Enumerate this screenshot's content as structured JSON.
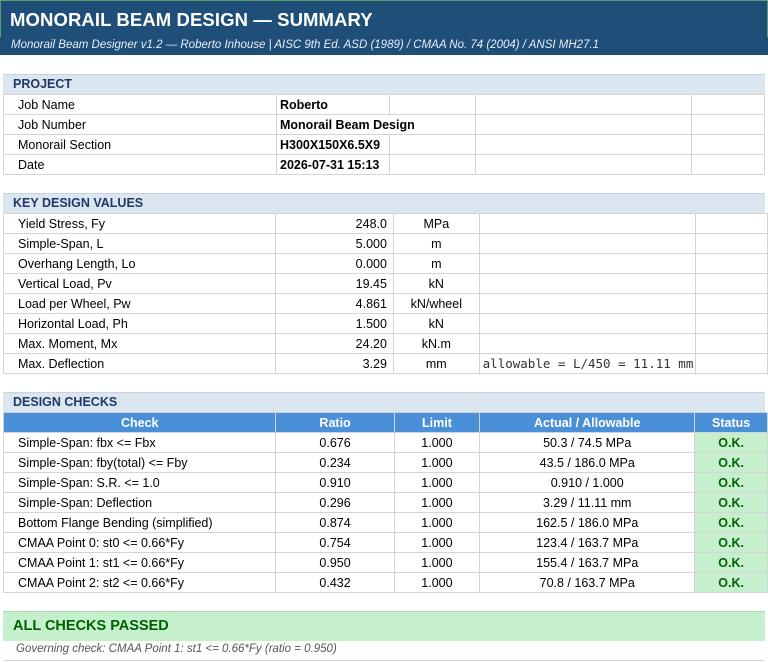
{
  "title": "MONORAIL BEAM DESIGN — SUMMARY",
  "subtitle": "Monorail Beam Designer v1.2 — Roberto Inhouse   |   AISC 9th Ed. ASD (1989) / CMAA No. 74 (2004) / ANSI MH27.1",
  "project": {
    "header": "PROJECT",
    "rows": [
      {
        "label": "Job Name",
        "value": "Roberto"
      },
      {
        "label": "Job Number",
        "value": "Monorail Beam Design"
      },
      {
        "label": "Monorail Section",
        "value": "H300X150X6.5X9"
      },
      {
        "label": "Date",
        "value": "2026-07-31 15:13"
      }
    ]
  },
  "key_values": {
    "header": "KEY DESIGN VALUES",
    "rows": [
      {
        "label": "Yield Stress, Fy",
        "value": "248.0",
        "unit": "MPa",
        "note": ""
      },
      {
        "label": "Simple-Span, L",
        "value": "5.000",
        "unit": "m",
        "note": ""
      },
      {
        "label": "Overhang Length, Lo",
        "value": "0.000",
        "unit": "m",
        "note": ""
      },
      {
        "label": "Vertical Load, Pv",
        "value": "19.45",
        "unit": "kN",
        "note": ""
      },
      {
        "label": "Load per Wheel, Pw",
        "value": "4.861",
        "unit": "kN/wheel",
        "note": ""
      },
      {
        "label": "Horizontal Load, Ph",
        "value": "1.500",
        "unit": "kN",
        "note": ""
      },
      {
        "label": "Max. Moment, Mx",
        "value": "24.20",
        "unit": "kN.m",
        "note": ""
      },
      {
        "label": "Max. Deflection",
        "value": "3.29",
        "unit": "mm",
        "note": "allowable = L/450 = 11.11 mm"
      }
    ]
  },
  "checks": {
    "header": "DESIGN CHECKS",
    "columns": [
      "Check",
      "Ratio",
      "Limit",
      "Actual / Allowable",
      "Status"
    ],
    "rows": [
      {
        "check": "Simple-Span: fbx <= Fbx",
        "ratio": "0.676",
        "limit": "1.000",
        "actual": "50.3 / 74.5 MPa",
        "status": "O.K."
      },
      {
        "check": "Simple-Span: fby(total) <= Fby",
        "ratio": "0.234",
        "limit": "1.000",
        "actual": "43.5 / 186.0 MPa",
        "status": "O.K."
      },
      {
        "check": "Simple-Span: S.R. <= 1.0",
        "ratio": "0.910",
        "limit": "1.000",
        "actual": "0.910 / 1.000",
        "status": "O.K."
      },
      {
        "check": "Simple-Span: Deflection",
        "ratio": "0.296",
        "limit": "1.000",
        "actual": "3.29 / 11.11 mm",
        "status": "O.K."
      },
      {
        "check": "Bottom Flange Bending (simplified)",
        "ratio": "0.874",
        "limit": "1.000",
        "actual": "162.5 / 186.0 MPa",
        "status": "O.K."
      },
      {
        "check": "CMAA Point 0: st0 <= 0.66*Fy",
        "ratio": "0.754",
        "limit": "1.000",
        "actual": "123.4 / 163.7 MPa",
        "status": "O.K."
      },
      {
        "check": "CMAA Point 1: st1 <= 0.66*Fy",
        "ratio": "0.950",
        "limit": "1.000",
        "actual": "155.4 / 163.7 MPa",
        "status": "O.K."
      },
      {
        "check": "CMAA Point 2: st2 <= 0.66*Fy",
        "ratio": "0.432",
        "limit": "1.000",
        "actual": "70.8 / 163.7 MPa",
        "status": "O.K."
      }
    ]
  },
  "result": "ALL CHECKS PASSED",
  "governing": "Governing check: CMAA Point 1: st1 <= 0.66*Fy  (ratio = 0.950)",
  "colors": {
    "title_bg": "#1f4e79",
    "section_bg": "#dce6f1",
    "table_header_bg": "#4a90d9",
    "ok_bg": "#c6efce",
    "ok_text": "#006100"
  }
}
